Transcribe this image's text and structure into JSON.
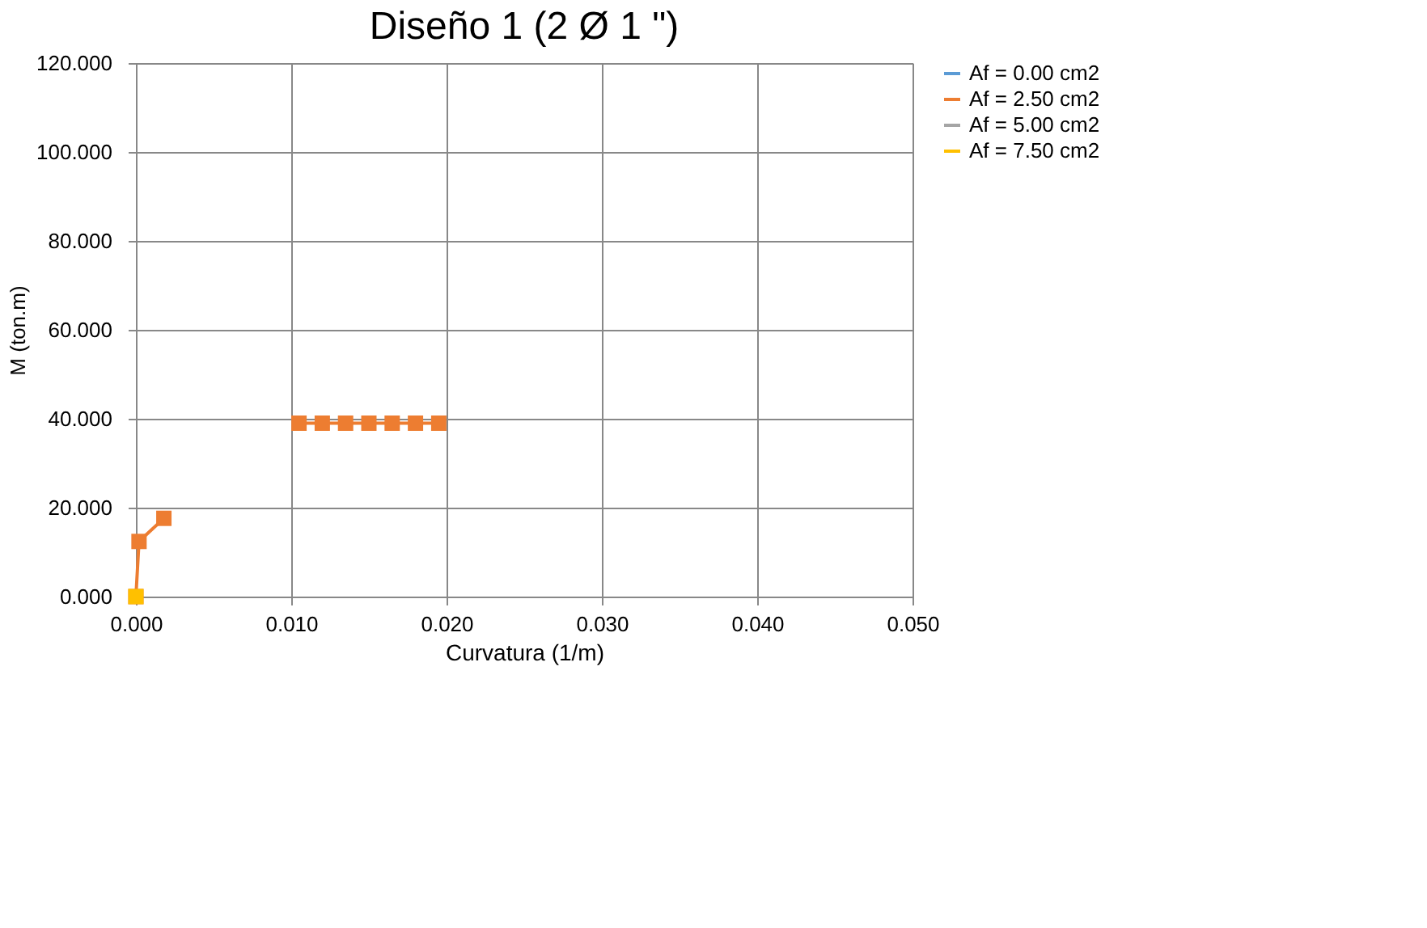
{
  "chart_data": {
    "type": "line",
    "title": "Diseño 1 (2 Ø 1 \")",
    "xlabel": "Curvatura (1/m)",
    "ylabel": "M (ton.m)",
    "marker": "square",
    "line_style": "solid",
    "grid": true,
    "legend": "right",
    "xlim": [
      0,
      0.05
    ],
    "ylim": [
      0,
      120
    ],
    "xticks": [
      {
        "value": 0,
        "label": "0.000"
      },
      {
        "value": 0.01,
        "label": "0.010"
      },
      {
        "value": 0.02,
        "label": "0.020"
      },
      {
        "value": 0.03,
        "label": "0.030"
      },
      {
        "value": 0.04,
        "label": "0.040"
      },
      {
        "value": 0.05,
        "label": "0.050"
      }
    ],
    "yticks": [
      {
        "value": 0,
        "label": "0.000"
      },
      {
        "value": 20,
        "label": "20.000"
      },
      {
        "value": 40,
        "label": "40.000"
      },
      {
        "value": 60,
        "label": "60.000"
      },
      {
        "value": 80,
        "label": "80.000"
      },
      {
        "value": 100,
        "label": "100.000"
      },
      {
        "value": 120,
        "label": "120.000"
      }
    ],
    "series": [
      {
        "name": "Af = 0.00 cm2",
        "color": "#5b9bd5"
      },
      {
        "name": "Af = 2.50 cm2",
        "color": "#ed7d31",
        "x": [
          0,
          0.0002,
          0.0018,
          0.006,
          0.0105,
          0.012,
          0.0135,
          0.015,
          0.0165,
          0.018,
          0.0195
        ],
        "values": [
          0,
          12.4,
          17.6,
          null,
          39,
          39,
          39,
          39,
          39,
          39,
          39
        ]
      },
      {
        "name": "Af = 5.00 cm2",
        "color": "#a5a5a5"
      },
      {
        "name": "Af = 7.50 cm2",
        "color": "#ffc000",
        "x": [
          0
        ],
        "values": [
          0
        ]
      }
    ]
  }
}
